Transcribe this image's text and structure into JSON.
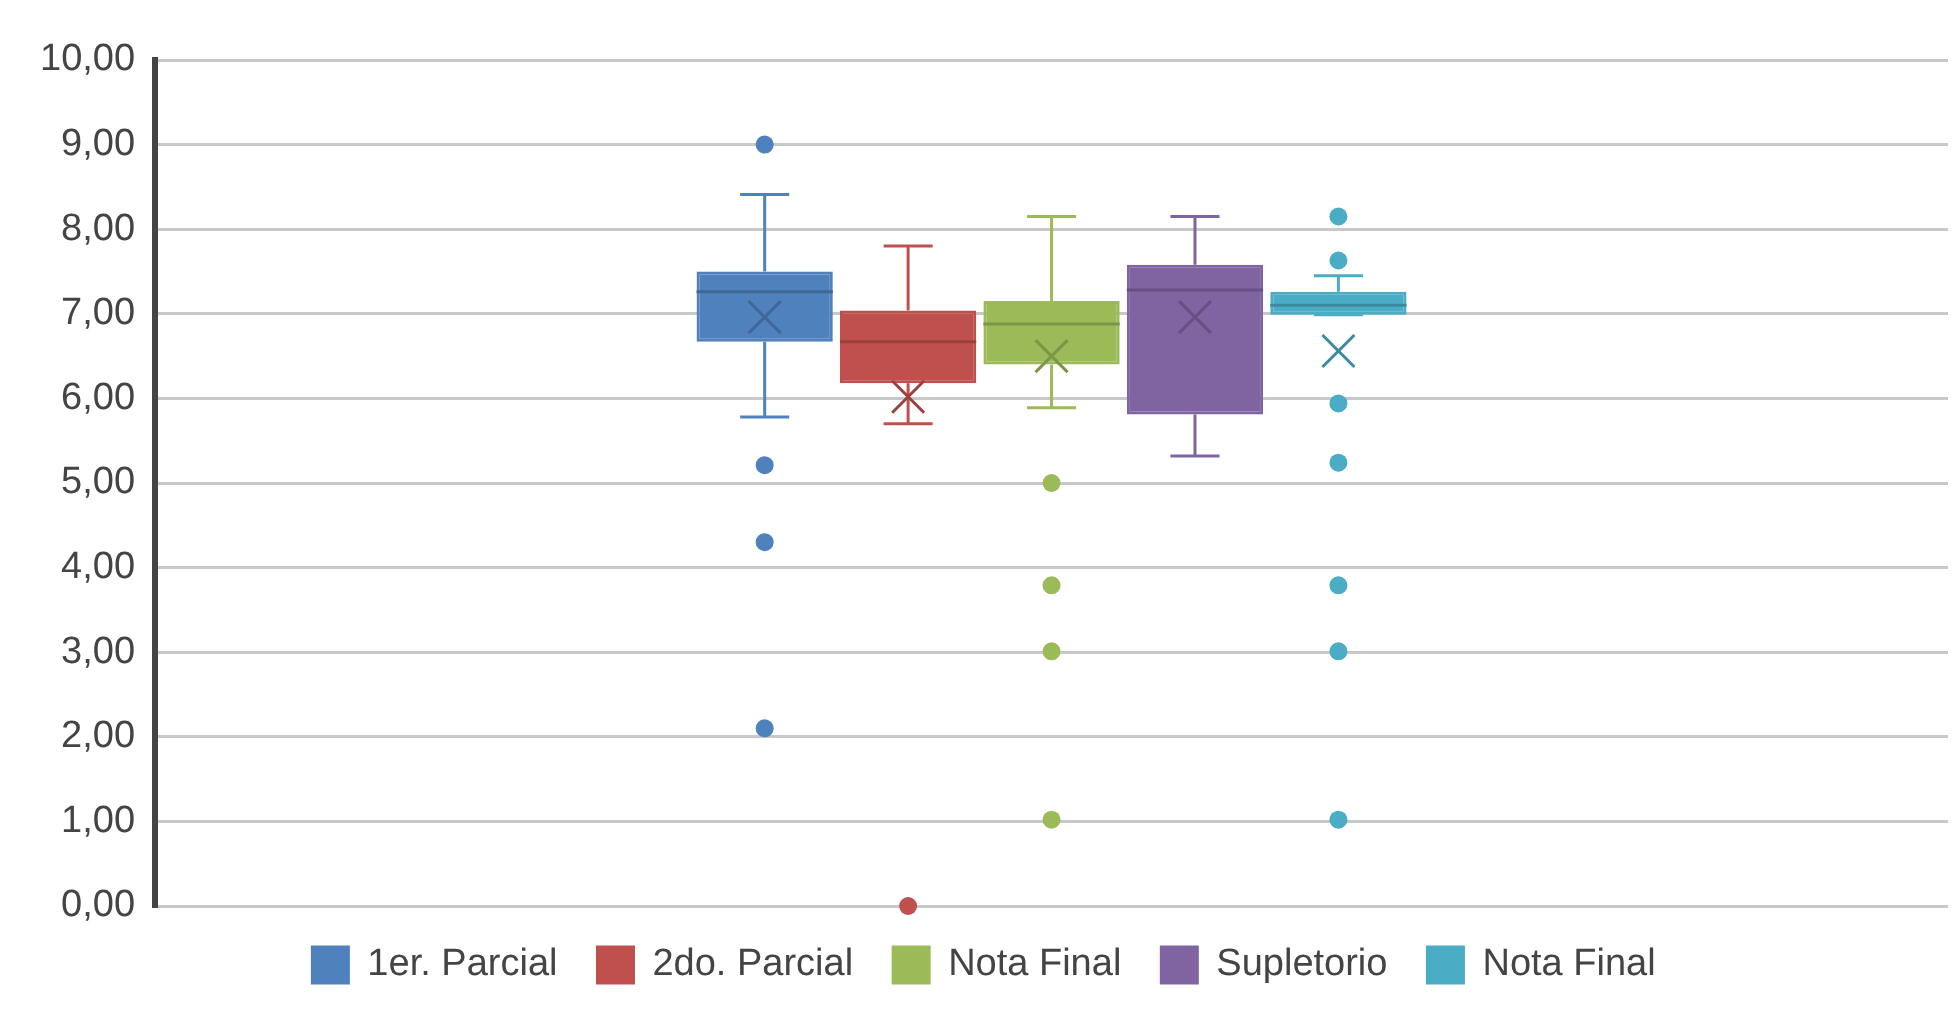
{
  "chart_data": {
    "type": "box",
    "categories": [
      null
    ],
    "ylim": [
      0,
      10
    ],
    "yticks": [
      {
        "value": 0,
        "label": "0,00"
      },
      {
        "value": 1,
        "label": "1,00"
      },
      {
        "value": 2,
        "label": "2,00"
      },
      {
        "value": 3,
        "label": "3,00"
      },
      {
        "value": 4,
        "label": "4,00"
      },
      {
        "value": 5,
        "label": "5,00"
      },
      {
        "value": 6,
        "label": "6,00"
      },
      {
        "value": 7,
        "label": "7,00"
      },
      {
        "value": 8,
        "label": "8,00"
      },
      {
        "value": 9,
        "label": "9,00"
      },
      {
        "value": 10,
        "label": "10,00"
      }
    ],
    "grid": "y",
    "legend": "bottom",
    "tick_labels": "y",
    "marker": "circle",
    "series": [
      {
        "name": "1er. Parcial",
        "color": "#4f81bd",
        "boxes": [
          {
            "low": 5.78,
            "q1": 6.67,
            "median": 7.26,
            "q3": 7.5,
            "high": 8.41,
            "mean": 6.96,
            "outliers": [
              9.0,
              5.21,
              4.3,
              2.1
            ]
          }
        ]
      },
      {
        "name": "2do. Parcial",
        "color": "#c0504d",
        "boxes": [
          {
            "low": 5.7,
            "q1": 6.18,
            "median": 6.67,
            "q3": 7.04,
            "high": 7.8,
            "mean": 6.02,
            "outliers": [
              0
            ]
          }
        ]
      },
      {
        "name": "Nota Final",
        "color": "#9bbb59",
        "boxes": [
          {
            "low": 5.89,
            "q1": 6.4,
            "median": 6.88,
            "q3": 7.15,
            "high": 8.15,
            "mean": 6.5,
            "outliers": [
              5.0,
              3.79,
              3.01,
              1.02
            ]
          }
        ]
      },
      {
        "name": "Supletorio",
        "color": "#8064a2",
        "boxes": [
          {
            "low": 5.32,
            "q1": 5.81,
            "median": 7.28,
            "q3": 7.58,
            "high": 8.15,
            "mean": 6.96
          }
        ]
      },
      {
        "name": "Nota Final",
        "color": "#4bacc6",
        "boxes": [
          {
            "low": 6.99,
            "q1": 6.99,
            "median": 7.1,
            "q3": 7.26,
            "high": 7.45,
            "mean": 6.56,
            "outliers": [
              8.15,
              7.63,
              5.94,
              5.24,
              3.79,
              3.01,
              1.02
            ]
          }
        ]
      }
    ]
  }
}
